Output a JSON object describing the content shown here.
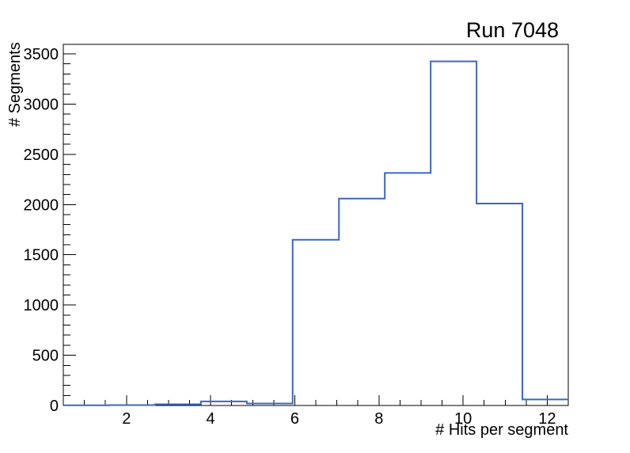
{
  "chart_data": {
    "type": "bar",
    "subtype": "step-histogram",
    "title": "Run 7048",
    "xlabel": "# Hits per segment",
    "ylabel": "# Segments",
    "xlim": [
      0.5,
      12.5
    ],
    "ylim": [
      0,
      3595
    ],
    "grid": false,
    "legend": false,
    "bin_edges": [
      0.5,
      1.59,
      2.68,
      3.77,
      4.86,
      5.95,
      7.05,
      8.14,
      9.23,
      10.32,
      11.41,
      12.5
    ],
    "values": [
      2,
      4,
      12,
      40,
      20,
      1650,
      2060,
      2315,
      3425,
      2010,
      60
    ],
    "x_major_ticks": [
      2,
      4,
      6,
      8,
      10,
      12
    ],
    "x_minor_tick_step": 0.5,
    "y_major_ticks": [
      0,
      500,
      1000,
      1500,
      2000,
      2500,
      3000,
      3500
    ],
    "y_minor_tick_step": 100,
    "colors": {
      "line": "#3b67c5",
      "frame": "#000000",
      "text": "#000000",
      "background": "#ffffff"
    }
  }
}
